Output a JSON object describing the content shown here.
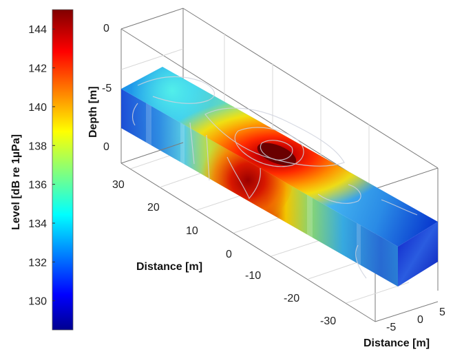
{
  "chart_data": {
    "type": "heatmap",
    "title": "",
    "colorbar": {
      "label": "Level [dB re 1µPa]",
      "range": [
        128.5,
        145
      ],
      "ticks": [
        "130",
        "132",
        "134",
        "136",
        "138",
        "140",
        "142",
        "144"
      ],
      "tick_values": [
        130,
        132,
        134,
        136,
        138,
        140,
        142,
        144
      ],
      "colormap": "jet"
    },
    "axes": {
      "depth": {
        "label": "Depth [m]",
        "ticks": [
          "0",
          "-5",
          "0"
        ]
      },
      "distance_long": {
        "label": "Distance [m]",
        "ticks": [
          "30",
          "20",
          "10",
          "0",
          "-10",
          "-20",
          "-30"
        ]
      },
      "distance_short": {
        "label": "Distance [m]",
        "ticks": [
          "-5",
          "0",
          "5"
        ]
      }
    },
    "grid": true,
    "volume_extent": {
      "distance_long": [
        -35,
        35
      ],
      "distance_short": [
        -5,
        5
      ]
    },
    "hotspot": {
      "approx_distance_long": 8,
      "approx_distance_short": 0,
      "max_level": 144
    },
    "background_level": 132,
    "legend": "colorbar-left"
  }
}
